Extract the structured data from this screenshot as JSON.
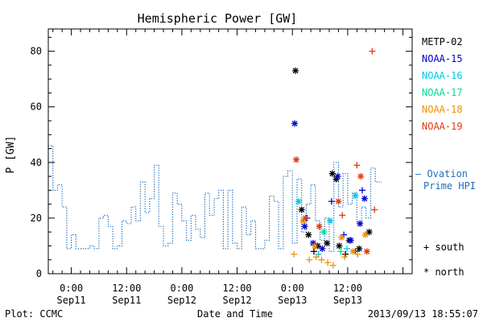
{
  "chart_data": {
    "type": "line",
    "title": "Hemispheric Power [GW]",
    "xlabel": "Date and Time",
    "ylabel": "P [GW]",
    "xlim": [
      "2013-09-10T19:00",
      "2013-09-14T02:00"
    ],
    "ylim": [
      0,
      88
    ],
    "yticks": [
      0,
      20,
      40,
      60,
      80
    ],
    "xticks": [
      {
        "at": "2013-09-11T00:00",
        "label1": "0:00",
        "label2": "Sep11"
      },
      {
        "at": "2013-09-11T12:00",
        "label1": "12:00",
        "label2": "Sep11"
      },
      {
        "at": "2013-09-12T00:00",
        "label1": "0:00",
        "label2": "Sep12"
      },
      {
        "at": "2013-09-12T12:00",
        "label1": "12:00",
        "label2": "Sep12"
      },
      {
        "at": "2013-09-13T00:00",
        "label1": "0:00",
        "label2": "Sep13"
      },
      {
        "at": "2013-09-13T12:00",
        "label1": "12:00",
        "label2": "Sep13"
      }
    ],
    "footer_left": "Plot: CCMC",
    "footer_right": "2013/09/13 18:55:07",
    "legend": {
      "placement": "right",
      "series_labels": [
        {
          "name": "METP-02",
          "color": "#000000"
        },
        {
          "name": "NOAA-15",
          "color": "#0000cc"
        },
        {
          "name": "NOAA-16",
          "color": "#00c8e6"
        },
        {
          "name": "NOAA-17",
          "color": "#00e08a"
        },
        {
          "name": "NOAA-18",
          "color": "#f0900a"
        },
        {
          "name": "NOAA-19",
          "color": "#e03a10"
        }
      ],
      "ovation_label_line1": "— Ovation",
      "ovation_label_line2": "Prime HPI",
      "ovation_color": "#1f6fbf",
      "south_label": "+ south",
      "north_label": "* north"
    },
    "ovation_series": {
      "name": "Ovation Prime HPI",
      "style": "dotted-step",
      "x": [
        "2013-09-10T19:00",
        "2013-09-10T20:00",
        "2013-09-10T21:00",
        "2013-09-10T22:00",
        "2013-09-10T23:00",
        "2013-09-11T00:00",
        "2013-09-11T01:00",
        "2013-09-11T03:00",
        "2013-09-11T04:00",
        "2013-09-11T05:00",
        "2013-09-11T06:00",
        "2013-09-11T07:00",
        "2013-09-11T08:00",
        "2013-09-11T09:00",
        "2013-09-11T10:00",
        "2013-09-11T11:00",
        "2013-09-11T12:00",
        "2013-09-11T13:00",
        "2013-09-11T14:00",
        "2013-09-11T15:00",
        "2013-09-11T16:00",
        "2013-09-11T17:00",
        "2013-09-11T18:00",
        "2013-09-11T19:00",
        "2013-09-11T20:00",
        "2013-09-11T21:00",
        "2013-09-11T22:00",
        "2013-09-11T23:00",
        "2013-09-12T00:00",
        "2013-09-12T01:00",
        "2013-09-12T02:00",
        "2013-09-12T03:00",
        "2013-09-12T04:00",
        "2013-09-12T05:00",
        "2013-09-12T06:00",
        "2013-09-12T07:00",
        "2013-09-12T08:00",
        "2013-09-12T09:00",
        "2013-09-12T10:00",
        "2013-09-12T11:00",
        "2013-09-12T12:00",
        "2013-09-12T13:00",
        "2013-09-12T14:00",
        "2013-09-12T15:00",
        "2013-09-12T16:00",
        "2013-09-12T17:00",
        "2013-09-12T18:00",
        "2013-09-12T19:00",
        "2013-09-12T20:00",
        "2013-09-12T21:00",
        "2013-09-12T22:00",
        "2013-09-12T23:00",
        "2013-09-13T00:00",
        "2013-09-13T01:00",
        "2013-09-13T02:00",
        "2013-09-13T03:00",
        "2013-09-13T04:00",
        "2013-09-13T05:00",
        "2013-09-13T06:00",
        "2013-09-13T07:00",
        "2013-09-13T08:00",
        "2013-09-13T09:00",
        "2013-09-13T10:00",
        "2013-09-13T11:00",
        "2013-09-13T12:00",
        "2013-09-13T13:00",
        "2013-09-13T14:00",
        "2013-09-13T15:00",
        "2013-09-13T16:00",
        "2013-09-13T17:00",
        "2013-09-13T18:00"
      ],
      "values": [
        46,
        30,
        32,
        24,
        9,
        14,
        9,
        9,
        10,
        9,
        20,
        21,
        17,
        9,
        10,
        19,
        18,
        24,
        19,
        33,
        22,
        27,
        39,
        17,
        10,
        11,
        29,
        25,
        19,
        12,
        21,
        16,
        13,
        29,
        21,
        27,
        30,
        9,
        30,
        11,
        9,
        24,
        14,
        19,
        9,
        9,
        12,
        28,
        26,
        9,
        35,
        37,
        11,
        34,
        15,
        25,
        32,
        19,
        12,
        20,
        8,
        40,
        24,
        36,
        25,
        29,
        18,
        24,
        20,
        38,
        33
      ]
    },
    "satellite_points": [
      {
        "series": "METP-02",
        "marker": "north",
        "x": "2013-09-13T00:40",
        "y": 73
      },
      {
        "series": "METP-02",
        "marker": "north",
        "x": "2013-09-13T02:00",
        "y": 23
      },
      {
        "series": "METP-02",
        "marker": "north",
        "x": "2013-09-13T03:30",
        "y": 14
      },
      {
        "series": "METP-02",
        "marker": "north",
        "x": "2013-09-13T05:30",
        "y": 10
      },
      {
        "series": "METP-02",
        "marker": "north",
        "x": "2013-09-13T07:30",
        "y": 11
      },
      {
        "series": "METP-02",
        "marker": "north",
        "x": "2013-09-13T08:40",
        "y": 36
      },
      {
        "series": "METP-02",
        "marker": "north",
        "x": "2013-09-13T09:30",
        "y": 34
      },
      {
        "series": "METP-02",
        "marker": "north",
        "x": "2013-09-13T10:10",
        "y": 10
      },
      {
        "series": "METP-02",
        "marker": "north",
        "x": "2013-09-13T12:20",
        "y": 12
      },
      {
        "series": "METP-02",
        "marker": "north",
        "x": "2013-09-13T14:30",
        "y": 9
      },
      {
        "series": "METP-02",
        "marker": "north",
        "x": "2013-09-13T16:40",
        "y": 15
      },
      {
        "series": "METP-02",
        "marker": "south",
        "x": "2013-09-13T04:40",
        "y": 8
      },
      {
        "series": "METP-02",
        "marker": "south",
        "x": "2013-09-13T11:30",
        "y": 7
      },
      {
        "series": "METP-02",
        "marker": "south",
        "x": "2013-09-13T13:40",
        "y": 8
      },
      {
        "series": "NOAA-15",
        "marker": "north",
        "x": "2013-09-13T00:30",
        "y": 54
      },
      {
        "series": "NOAA-15",
        "marker": "north",
        "x": "2013-09-13T02:40",
        "y": 17
      },
      {
        "series": "NOAA-15",
        "marker": "north",
        "x": "2013-09-13T04:30",
        "y": 11
      },
      {
        "series": "NOAA-15",
        "marker": "north",
        "x": "2013-09-13T06:30",
        "y": 9
      },
      {
        "series": "NOAA-15",
        "marker": "north",
        "x": "2013-09-13T09:50",
        "y": 35
      },
      {
        "series": "NOAA-15",
        "marker": "north",
        "x": "2013-09-13T12:40",
        "y": 12
      },
      {
        "series": "NOAA-15",
        "marker": "north",
        "x": "2013-09-13T14:40",
        "y": 18
      },
      {
        "series": "NOAA-15",
        "marker": "north",
        "x": "2013-09-13T15:40",
        "y": 27
      },
      {
        "series": "NOAA-15",
        "marker": "south",
        "x": "2013-09-13T03:10",
        "y": 20
      },
      {
        "series": "NOAA-15",
        "marker": "south",
        "x": "2013-09-13T08:30",
        "y": 26
      },
      {
        "series": "NOAA-15",
        "marker": "south",
        "x": "2013-09-13T11:10",
        "y": 14
      },
      {
        "series": "NOAA-15",
        "marker": "south",
        "x": "2013-09-13T15:10",
        "y": 30
      },
      {
        "series": "NOAA-16",
        "marker": "north",
        "x": "2013-09-13T01:20",
        "y": 26
      },
      {
        "series": "NOAA-16",
        "marker": "north",
        "x": "2013-09-13T08:10",
        "y": 19
      },
      {
        "series": "NOAA-16",
        "marker": "north",
        "x": "2013-09-13T13:40",
        "y": 28
      },
      {
        "series": "NOAA-16",
        "marker": "south",
        "x": "2013-09-13T05:40",
        "y": 7
      },
      {
        "series": "NOAA-16",
        "marker": "south",
        "x": "2013-09-13T11:50",
        "y": 9
      },
      {
        "series": "NOAA-17",
        "marker": "north",
        "x": "2013-09-13T06:50",
        "y": 15
      },
      {
        "series": "NOAA-17",
        "marker": "south",
        "x": "2013-09-13T10:30",
        "y": 8
      },
      {
        "series": "NOAA-18",
        "marker": "south",
        "x": "2013-09-13T00:20",
        "y": 7
      },
      {
        "series": "NOAA-18",
        "marker": "south",
        "x": "2013-09-13T03:40",
        "y": 5
      },
      {
        "series": "NOAA-18",
        "marker": "south",
        "x": "2013-09-13T05:10",
        "y": 6
      },
      {
        "series": "NOAA-18",
        "marker": "south",
        "x": "2013-09-13T06:20",
        "y": 5
      },
      {
        "series": "NOAA-18",
        "marker": "south",
        "x": "2013-09-13T07:40",
        "y": 4
      },
      {
        "series": "NOAA-18",
        "marker": "south",
        "x": "2013-09-13T08:50",
        "y": 3
      },
      {
        "series": "NOAA-18",
        "marker": "south",
        "x": "2013-09-13T11:20",
        "y": 6
      },
      {
        "series": "NOAA-18",
        "marker": "south",
        "x": "2013-09-13T14:10",
        "y": 7
      },
      {
        "series": "NOAA-18",
        "marker": "north",
        "x": "2013-09-13T02:20",
        "y": 19
      },
      {
        "series": "NOAA-18",
        "marker": "north",
        "x": "2013-09-13T04:50",
        "y": 10
      },
      {
        "series": "NOAA-18",
        "marker": "north",
        "x": "2013-09-13T10:40",
        "y": 13
      },
      {
        "series": "NOAA-18",
        "marker": "north",
        "x": "2013-09-13T13:10",
        "y": 8
      },
      {
        "series": "NOAA-18",
        "marker": "north",
        "x": "2013-09-13T15:50",
        "y": 14
      },
      {
        "series": "NOAA-19",
        "marker": "north",
        "x": "2013-09-13T00:50",
        "y": 41
      },
      {
        "series": "NOAA-19",
        "marker": "north",
        "x": "2013-09-13T02:50",
        "y": 20
      },
      {
        "series": "NOAA-19",
        "marker": "north",
        "x": "2013-09-13T05:50",
        "y": 17
      },
      {
        "series": "NOAA-19",
        "marker": "north",
        "x": "2013-09-13T10:00",
        "y": 26
      },
      {
        "series": "NOAA-19",
        "marker": "north",
        "x": "2013-09-13T14:50",
        "y": 35
      },
      {
        "series": "NOAA-19",
        "marker": "north",
        "x": "2013-09-13T16:10",
        "y": 8
      },
      {
        "series": "NOAA-19",
        "marker": "south",
        "x": "2013-09-13T10:50",
        "y": 21
      },
      {
        "series": "NOAA-19",
        "marker": "south",
        "x": "2013-09-13T14:00",
        "y": 39
      },
      {
        "series": "NOAA-19",
        "marker": "south",
        "x": "2013-09-13T17:20",
        "y": 80
      },
      {
        "series": "NOAA-19",
        "marker": "south",
        "x": "2013-09-13T17:50",
        "y": 23
      }
    ]
  }
}
